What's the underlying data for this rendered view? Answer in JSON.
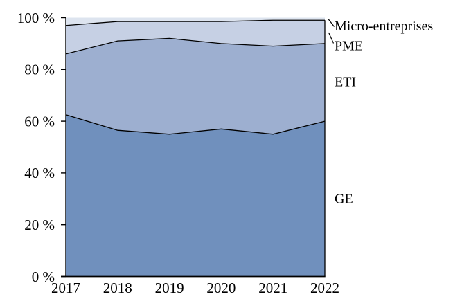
{
  "figure": {
    "background": "#ffffff",
    "axis_color": "#000000",
    "line_color": "#000000"
  },
  "chart_data": {
    "type": "area",
    "stacking": "percent",
    "title": "",
    "xlabel": "",
    "ylabel": "",
    "x": [
      2017,
      2018,
      2019,
      2020,
      2021,
      2022
    ],
    "x_tick_labels": [
      "2017",
      "2018",
      "2019",
      "2020",
      "2021",
      "2022"
    ],
    "y_ticks": [
      0,
      20,
      40,
      60,
      80,
      100
    ],
    "y_tick_labels": [
      "0 %",
      "20 %",
      "40 %",
      "60 %",
      "80 %",
      "100 %"
    ],
    "ylim": [
      0,
      100
    ],
    "grid": false,
    "legend_position": "right-annotations",
    "series": [
      {
        "name": "GE",
        "color": "#7090bd",
        "values": [
          62.5,
          56.5,
          55.0,
          57.0,
          55.0,
          60.0
        ]
      },
      {
        "name": "ETI",
        "color": "#9dafd0",
        "values": [
          23.5,
          34.5,
          37.0,
          33.0,
          34.0,
          30.0
        ]
      },
      {
        "name": "PME",
        "color": "#c6d0e4",
        "values": [
          11.0,
          7.5,
          6.5,
          8.5,
          10.0,
          9.0
        ]
      },
      {
        "name": "Micro-entreprises",
        "color": "#dde4ef",
        "values": [
          3.0,
          1.5,
          1.5,
          1.5,
          1.0,
          1.0
        ]
      }
    ]
  }
}
